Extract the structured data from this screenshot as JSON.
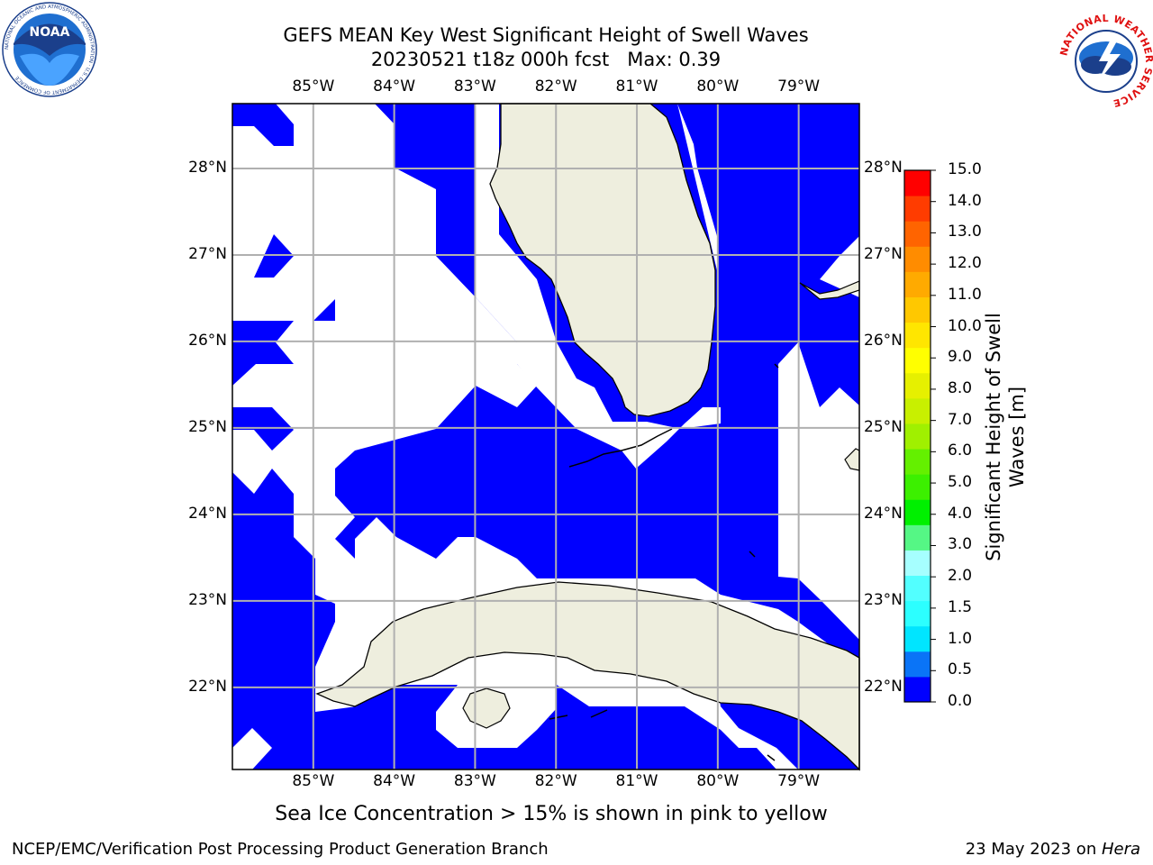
{
  "title": {
    "line1": "GEFS MEAN Key West Significant Height of Swell Waves",
    "line2": "20230521 t18z 000h fcst   Max: 0.39"
  },
  "axes": {
    "lon_labels": [
      "85°W",
      "84°W",
      "83°W",
      "82°W",
      "81°W",
      "80°W",
      "79°W"
    ],
    "lat_labels": [
      "28°N",
      "27°N",
      "26°N",
      "25°N",
      "24°N",
      "23°N",
      "22°N"
    ],
    "lon_values": [
      -85,
      -84,
      -83,
      -82,
      -81,
      -80,
      -79
    ],
    "lat_values": [
      28,
      27,
      26,
      25,
      24,
      23,
      22
    ],
    "lon_range": [
      -86,
      -78.25
    ],
    "lat_range": [
      21.05,
      28.75
    ]
  },
  "colorbar": {
    "title": "Significant Height of Swell Waves [m]",
    "tick_labels": [
      "15.0",
      "14.0",
      "13.0",
      "12.0",
      "11.0",
      "10.0",
      "9.0",
      "8.0",
      "7.0",
      "6.0",
      "5.0",
      "4.0",
      "3.0",
      "2.0",
      "1.5",
      "1.0",
      "0.5",
      "0.0"
    ],
    "colors_bottom_to_top": [
      "#0000ff",
      "#0a74f7",
      "#00e5ff",
      "#2cffff",
      "#52ffff",
      "#a6ffff",
      "#55f785",
      "#00f000",
      "#3cf000",
      "#64f000",
      "#a0f000",
      "#c8f000",
      "#e6f000",
      "#ffff00",
      "#ffe600",
      "#ffc800",
      "#ffaa00",
      "#ff8c00",
      "#ff6400",
      "#ff3c00",
      "#ff0000"
    ]
  },
  "colors": {
    "swell": "#0000ff",
    "land": "#eeeede",
    "no_data": "#ffffff",
    "gridline": "#b0b0b0"
  },
  "note": "Sea Ice Concentration > 15% is shown in pink to yellow",
  "footer": {
    "left": "NCEP/EMC/Verification Post Processing Product Generation Branch",
    "right_date": "23 May 2023 on ",
    "right_host": "Hera"
  },
  "logos": {
    "noaa_text": "NOAA",
    "noaa_ring": "NATIONAL OCEANIC AND ATMOSPHERIC ADMINISTRATION · U.S. DEPARTMENT OF COMMERCE",
    "nws_ring": "NATIONAL WEATHER SERVICE"
  }
}
